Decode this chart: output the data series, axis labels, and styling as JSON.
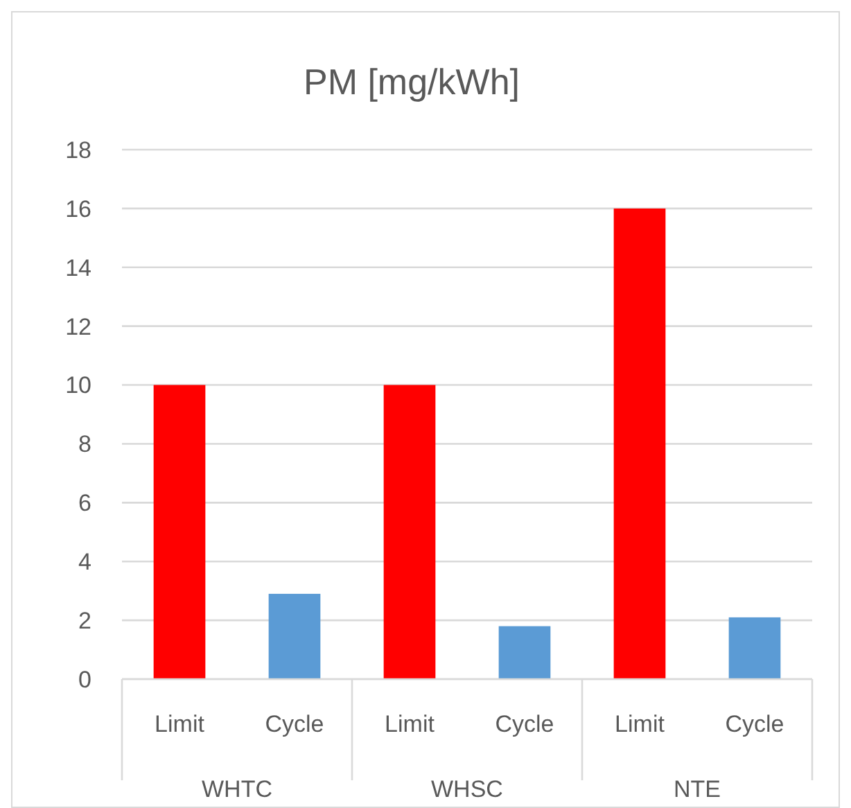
{
  "chart_data": {
    "type": "bar",
    "title": "PM [mg/kWh]",
    "categories": [
      "WHTC",
      "WHSC",
      "NTE"
    ],
    "series": [
      {
        "name": "Limit",
        "color": "#ff0000",
        "values": [
          10,
          10,
          16
        ]
      },
      {
        "name": "Cycle",
        "color": "#5b9bd5",
        "values": [
          2.9,
          1.8,
          2.1
        ]
      }
    ],
    "ylim": [
      0,
      18
    ],
    "yticks": [
      0,
      2,
      4,
      6,
      8,
      10,
      12,
      14,
      16,
      18
    ],
    "grid": "y"
  }
}
